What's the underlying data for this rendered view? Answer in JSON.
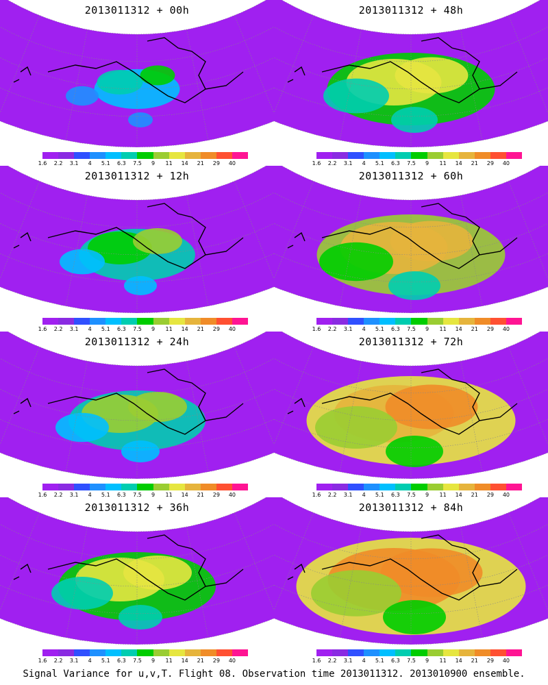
{
  "figure": {
    "caption": "Signal Variance for u,v,T. Flight 08. Observation time 2013011312. 2013010900 ensemble."
  },
  "colorbar": {
    "levels": [
      "1.6",
      "2.2",
      "3.1",
      "4",
      "5.1",
      "6.3",
      "7.5",
      "9",
      "11",
      "14",
      "21",
      "29",
      "40"
    ],
    "colors": [
      "#a020f0",
      "#8a2be2",
      "#3050ff",
      "#1e90ff",
      "#00bfff",
      "#00cdb0",
      "#00cd00",
      "#9acd32",
      "#e6e640",
      "#e6b43c",
      "#f08c28",
      "#ff5032",
      "#ff1493"
    ]
  },
  "panels": [
    {
      "title": "2013011312 + 00h",
      "col": 0,
      "row": 0,
      "intensity": 0.15
    },
    {
      "title": "2013011312 + 48h",
      "col": 1,
      "row": 0,
      "intensity": 0.55
    },
    {
      "title": "2013011312 + 12h",
      "col": 0,
      "row": 1,
      "intensity": 0.3
    },
    {
      "title": "2013011312 + 60h",
      "col": 1,
      "row": 1,
      "intensity": 0.65
    },
    {
      "title": "2013011312 + 24h",
      "col": 0,
      "row": 2,
      "intensity": 0.4
    },
    {
      "title": "2013011312 + 72h",
      "col": 1,
      "row": 2,
      "intensity": 0.75
    },
    {
      "title": "2013011312 + 36h",
      "col": 0,
      "row": 3,
      "intensity": 0.5
    },
    {
      "title": "2013011312 + 84h",
      "col": 1,
      "row": 3,
      "intensity": 0.85
    }
  ]
}
